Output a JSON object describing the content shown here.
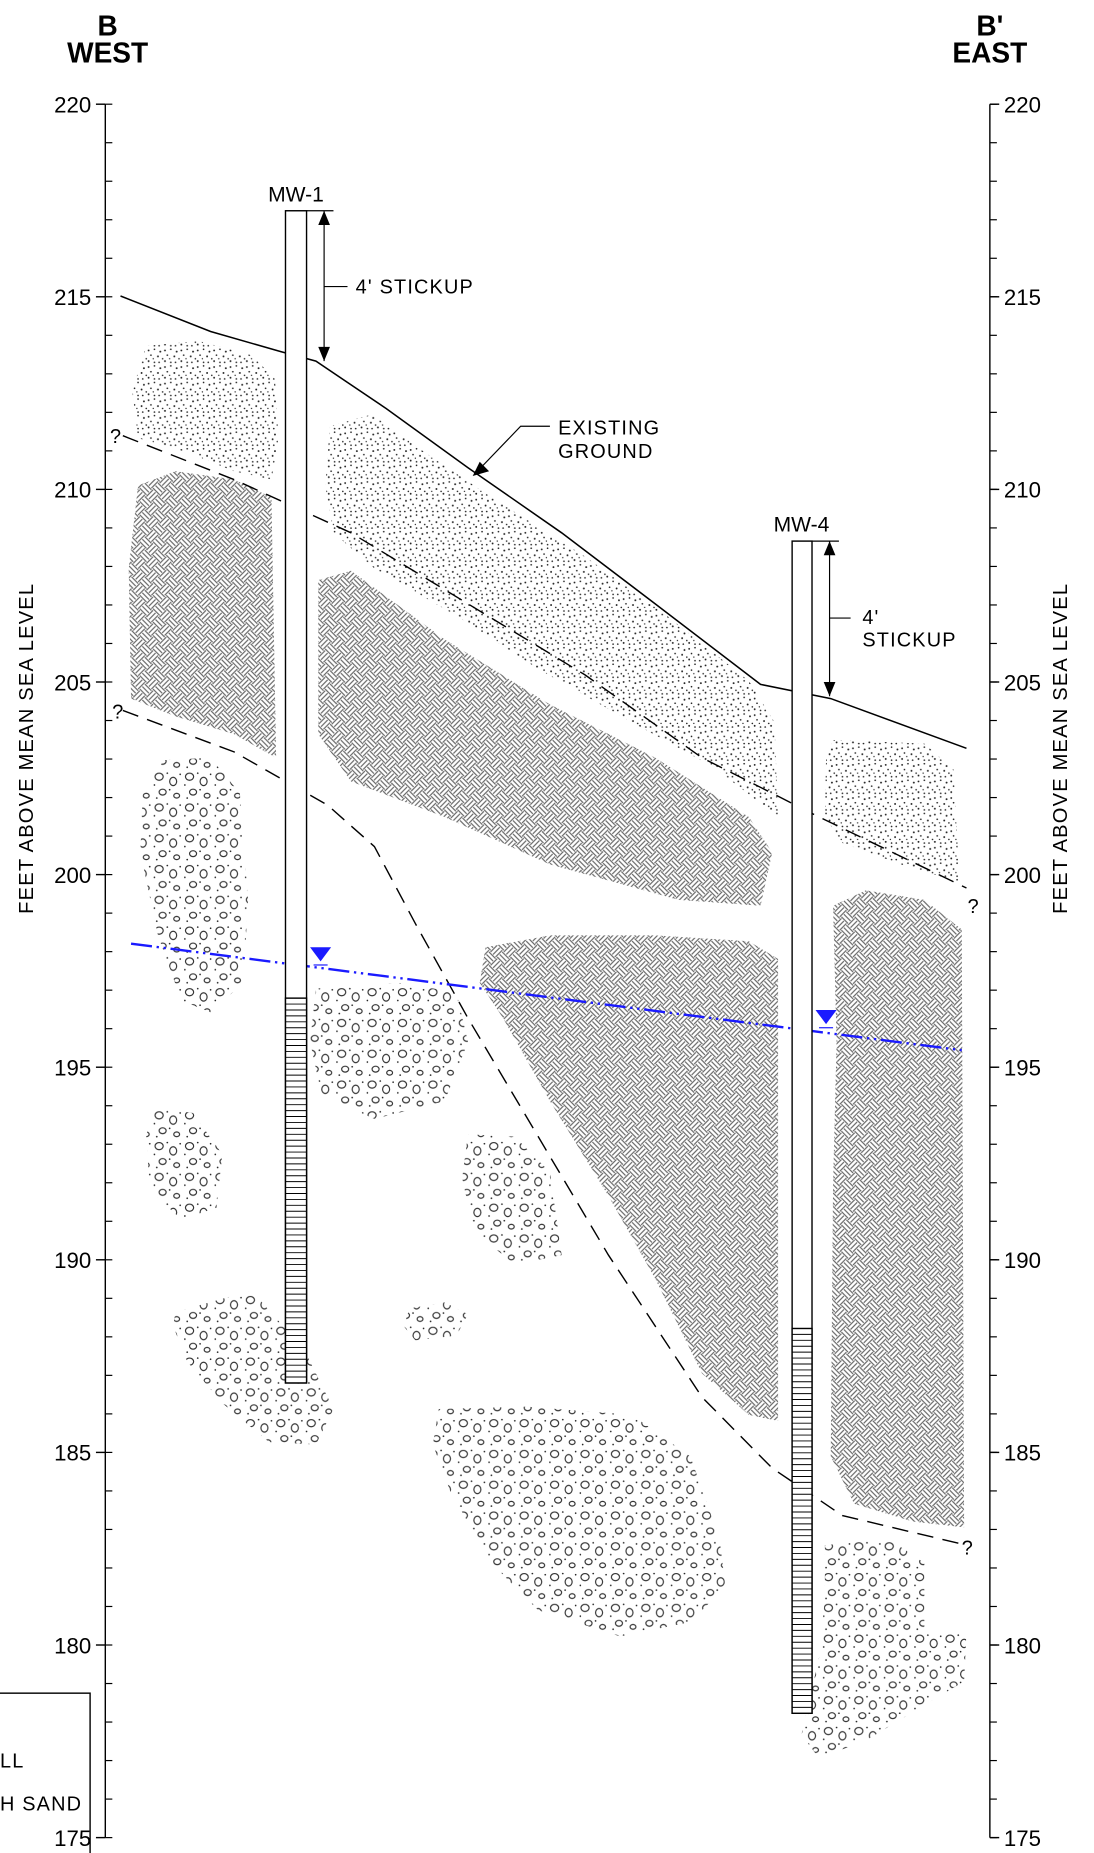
{
  "header": {
    "left": {
      "letter": "B",
      "direction": "WEST"
    },
    "right": {
      "letter": "B'",
      "direction": "EAST"
    }
  },
  "axis": {
    "label": "FEET ABOVE MEAN SEA LEVEL",
    "ylim": [
      175,
      220
    ],
    "ticks": [
      220,
      215,
      210,
      205,
      200,
      195,
      190,
      185,
      180,
      175
    ]
  },
  "wells": [
    {
      "label": "MW-1",
      "stickup": [
        "4' STICKUP"
      ]
    },
    {
      "label": "MW-4",
      "stickup": [
        "4'",
        "STICKUP"
      ]
    }
  ],
  "annotations": {
    "existing_ground": [
      "EXISTING",
      "GROUND"
    ],
    "query": "?"
  },
  "legend": {
    "items": [
      "LL",
      "H SAND"
    ]
  }
}
